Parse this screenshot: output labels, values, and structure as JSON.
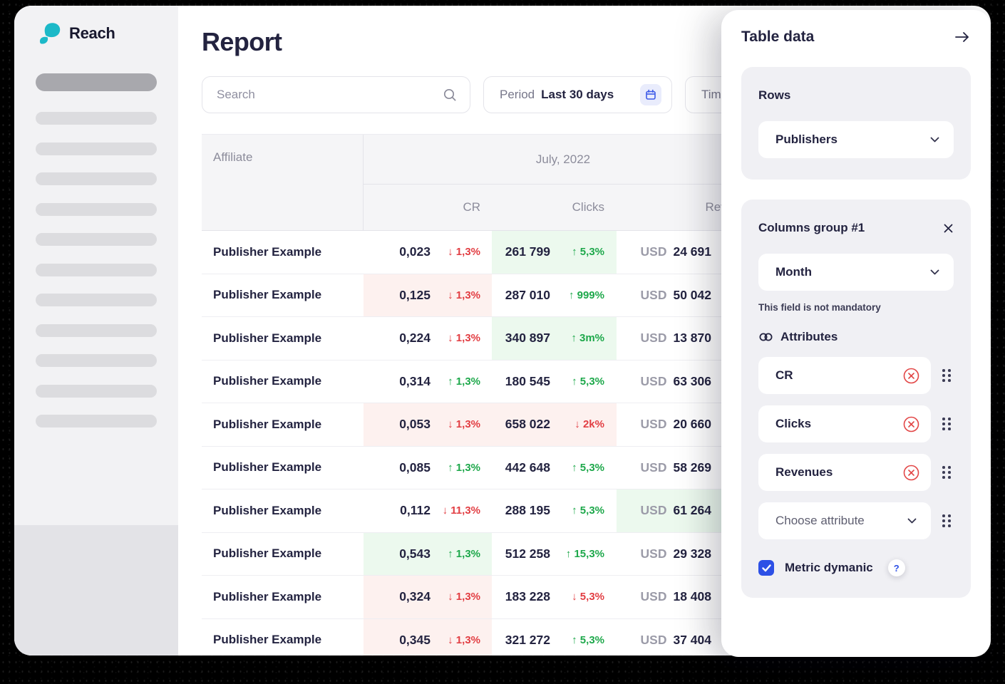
{
  "app": {
    "brand": "Reach"
  },
  "page": {
    "title": "Report"
  },
  "toolbar": {
    "search_placeholder": "Search",
    "period_label": "Period",
    "period_value": "Last 30 days",
    "time_label_partial": "Tim"
  },
  "table": {
    "affiliate_header": "Affiliate",
    "group_header": "July, 2022",
    "columns": [
      "CR",
      "Clicks",
      "Revenues"
    ],
    "currency": "USD",
    "rows": [
      {
        "name": "Publisher Example",
        "cr": "0,023",
        "cr_dir": "down",
        "cr_delta": "1,3%",
        "cr_bg": "none",
        "clicks": "261 799",
        "clicks_dir": "up",
        "clicks_delta": "5,3%",
        "clicks_bg": "green",
        "revenue": "24 691",
        "rev_bg": "none"
      },
      {
        "name": "Publisher Example",
        "cr": "0,125",
        "cr_dir": "down",
        "cr_delta": "1,3%",
        "cr_bg": "red",
        "clicks": "287 010",
        "clicks_dir": "up",
        "clicks_delta": "999%",
        "clicks_bg": "none",
        "revenue": "50 042",
        "rev_bg": "none"
      },
      {
        "name": "Publisher Example",
        "cr": "0,224",
        "cr_dir": "down",
        "cr_delta": "1,3%",
        "cr_bg": "none",
        "clicks": "340 897",
        "clicks_dir": "up",
        "clicks_delta": "3m%",
        "clicks_bg": "green",
        "revenue": "13 870",
        "rev_bg": "none"
      },
      {
        "name": "Publisher Example",
        "cr": "0,314",
        "cr_dir": "up",
        "cr_delta": "1,3%",
        "cr_bg": "none",
        "clicks": "180 545",
        "clicks_dir": "up",
        "clicks_delta": "5,3%",
        "clicks_bg": "none",
        "revenue": "63 306",
        "rev_bg": "none"
      },
      {
        "name": "Publisher Example",
        "cr": "0,053",
        "cr_dir": "down",
        "cr_delta": "1,3%",
        "cr_bg": "red",
        "clicks": "658 022",
        "clicks_dir": "down",
        "clicks_delta": "2k%",
        "clicks_bg": "red",
        "revenue": "20 660",
        "rev_bg": "none"
      },
      {
        "name": "Publisher Example",
        "cr": "0,085",
        "cr_dir": "up",
        "cr_delta": "1,3%",
        "cr_bg": "none",
        "clicks": "442 648",
        "clicks_dir": "up",
        "clicks_delta": "5,3%",
        "clicks_bg": "none",
        "revenue": "58 269",
        "rev_bg": "none"
      },
      {
        "name": "Publisher Example",
        "cr": "0,112",
        "cr_dir": "down",
        "cr_delta": "11,3%",
        "cr_bg": "none",
        "clicks": "288 195",
        "clicks_dir": "up",
        "clicks_delta": "5,3%",
        "clicks_bg": "none",
        "revenue": "61 264",
        "rev_bg": "green"
      },
      {
        "name": "Publisher Example",
        "cr": "0,543",
        "cr_dir": "up",
        "cr_delta": "1,3%",
        "cr_bg": "green",
        "clicks": "512 258",
        "clicks_dir": "up",
        "clicks_delta": "15,3%",
        "clicks_bg": "none",
        "revenue": "29 328",
        "rev_bg": "none"
      },
      {
        "name": "Publisher Example",
        "cr": "0,324",
        "cr_dir": "down",
        "cr_delta": "1,3%",
        "cr_bg": "red",
        "clicks": "183 228",
        "clicks_dir": "down",
        "clicks_delta": "5,3%",
        "clicks_bg": "none",
        "revenue": "18 408",
        "rev_bg": "none"
      },
      {
        "name": "Publisher Example",
        "cr": "0,345",
        "cr_dir": "down",
        "cr_delta": "1,3%",
        "cr_bg": "red",
        "clicks": "321 272",
        "clicks_dir": "up",
        "clicks_delta": "5,3%",
        "clicks_bg": "none",
        "revenue": "37 404",
        "rev_bg": "none"
      }
    ]
  },
  "panel": {
    "title": "Table data",
    "rows_section": {
      "label": "Rows",
      "value": "Publishers"
    },
    "columns_group": {
      "title": "Columns group #1",
      "dimension_value": "Month",
      "hint": "This field is not mandatory",
      "attributes_label": "Attributes",
      "attributes": [
        "CR",
        "Clicks",
        "Revenues"
      ],
      "choose_placeholder": "Choose attribute",
      "metric_label": "Metric dymanic",
      "metric_checked": true
    }
  },
  "icons": {
    "brand": "teal-leaf-swoosh",
    "search": "magnifier",
    "period": "calendar",
    "panel_collapse": "arrow-right",
    "group_close": "x",
    "attributes": "chain-link",
    "attribute_remove": "circle-x",
    "attribute_drag": "dots-grid",
    "select_open": "chevron-down",
    "metric_help": "question-mark",
    "metric_checkbox": "checkmark"
  },
  "colors": {
    "brand_teal": "#1cb9c8",
    "accent_blue": "#2d50e6",
    "positive_green": "#1ea84b",
    "negative_red": "#e23e43",
    "tint_green": "#ecf9ee",
    "tint_red": "#fdf1ef",
    "ink": "#232340",
    "muted_gray": "#8c8c9b"
  }
}
